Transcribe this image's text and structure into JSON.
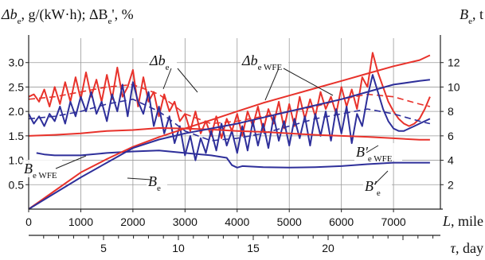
{
  "colors": {
    "red": "#e8322b",
    "blue": "#2e2f9a",
    "grid": "#9a9a9a",
    "axis": "#222222"
  },
  "chart_data": {
    "type": "line",
    "title": "",
    "ylabel_left": {
      "base": "Δb",
      "sub": "e",
      "rest": ", g/(kW·h); ΔB",
      "sub2": "e",
      "tail": "', %"
    },
    "ylabel_right": {
      "base": "B",
      "sub": "e",
      "tail": ", t"
    },
    "xlabel": {
      "var": "L",
      "tail": ", mile"
    },
    "x2label": {
      "var": "τ",
      "tail": ", day"
    },
    "xlim": [
      0,
      7900
    ],
    "ylim_left": [
      0,
      3.5
    ],
    "ylim_right": [
      0,
      14
    ],
    "x_ticks": [
      0,
      1000,
      2000,
      3000,
      4000,
      5000,
      6000,
      7000
    ],
    "y_left_ticks": [
      0.5,
      1.0,
      1.5,
      2.0,
      2.5,
      3.0
    ],
    "y_right_ticks": [
      2,
      4,
      6,
      8,
      10,
      12
    ],
    "x2_ticks": [
      5,
      10,
      15,
      20
    ],
    "x2_range_days": [
      0,
      27.5
    ],
    "grid": true,
    "series": [
      {
        "name": "Δb_e (red)",
        "color": "red",
        "axis": "left",
        "dash": false,
        "x": [
          0,
          100,
          200,
          300,
          400,
          500,
          600,
          700,
          800,
          900,
          1000,
          1100,
          1200,
          1300,
          1400,
          1500,
          1600,
          1700,
          1800,
          1900,
          2000,
          2100,
          2200,
          2300,
          2400,
          2500,
          2600,
          2700,
          2800,
          2900,
          3000,
          3100,
          3200,
          3300,
          3400,
          3500,
          3600,
          3700,
          3800,
          3900,
          4000,
          4100,
          4200,
          4300,
          4400,
          4500,
          4600,
          4700,
          4800,
          4900,
          5000,
          5100,
          5200,
          5300,
          5400,
          5500,
          5600,
          5700,
          5800,
          5900,
          6000,
          6100,
          6200,
          6300,
          6400,
          6500,
          6600,
          6700,
          6800,
          6900,
          7000,
          7100,
          7200,
          7300,
          7400,
          7500,
          7600,
          7700
        ],
        "y": [
          2.3,
          2.35,
          2.2,
          2.45,
          2.1,
          2.5,
          2.15,
          2.6,
          2.2,
          2.7,
          2.25,
          2.8,
          2.3,
          2.65,
          2.2,
          2.75,
          2.25,
          2.9,
          2.3,
          2.5,
          2.85,
          2.1,
          2.7,
          2.2,
          2.4,
          1.9,
          2.35,
          2.0,
          2.2,
          1.8,
          1.95,
          1.6,
          2.0,
          1.55,
          1.8,
          1.5,
          1.9,
          1.45,
          1.85,
          1.6,
          1.95,
          1.5,
          2.0,
          1.7,
          2.1,
          1.6,
          2.05,
          1.75,
          2.2,
          1.65,
          2.15,
          1.7,
          2.3,
          1.85,
          2.25,
          1.9,
          2.4,
          2.05,
          2.3,
          1.95,
          2.5,
          2.1,
          2.45,
          2.05,
          2.7,
          2.5,
          3.2,
          2.8,
          2.5,
          2.2,
          2.0,
          1.85,
          1.75,
          1.7,
          1.75,
          1.85,
          2.05,
          2.3
        ]
      },
      {
        "name": "Δb_e trend (red)",
        "color": "red",
        "axis": "left",
        "dash": true,
        "x": [
          0,
          500,
          1000,
          1500,
          2000,
          2500,
          3000,
          3500,
          4000,
          4500,
          5000,
          5500,
          6000,
          6500,
          7000,
          7500,
          7700
        ],
        "y": [
          2.25,
          2.3,
          2.4,
          2.5,
          2.55,
          2.35,
          1.95,
          1.75,
          1.8,
          1.9,
          2.0,
          2.1,
          2.25,
          2.35,
          2.3,
          2.15,
          2.1
        ]
      },
      {
        "name": "Δb_e WFE (blue)",
        "color": "blue",
        "axis": "left",
        "dash": false,
        "x": [
          0,
          100,
          200,
          300,
          400,
          500,
          600,
          700,
          800,
          900,
          1000,
          1100,
          1200,
          1300,
          1400,
          1500,
          1600,
          1700,
          1800,
          1900,
          2000,
          2100,
          2200,
          2300,
          2400,
          2500,
          2600,
          2700,
          2800,
          2900,
          3000,
          3100,
          3200,
          3300,
          3400,
          3500,
          3600,
          3700,
          3800,
          3900,
          4000,
          4100,
          4200,
          4300,
          4400,
          4500,
          4600,
          4700,
          4800,
          4900,
          5000,
          5100,
          5200,
          5300,
          5400,
          5500,
          5600,
          5700,
          5800,
          5900,
          6000,
          6100,
          6200,
          6300,
          6400,
          6500,
          6600,
          6700,
          6800,
          6900,
          7000,
          7100,
          7200,
          7300,
          7400,
          7500,
          7600,
          7700
        ],
        "y": [
          1.95,
          1.75,
          1.9,
          1.7,
          1.95,
          1.8,
          2.1,
          1.75,
          2.2,
          1.9,
          2.3,
          2.0,
          2.4,
          1.95,
          2.2,
          1.8,
          2.35,
          2.0,
          2.55,
          1.9,
          2.6,
          2.2,
          1.95,
          2.4,
          1.7,
          2.1,
          1.55,
          1.9,
          1.35,
          1.7,
          1.1,
          1.5,
          1.0,
          1.45,
          1.15,
          1.6,
          1.2,
          1.75,
          1.3,
          1.6,
          1.15,
          1.7,
          1.2,
          1.8,
          1.3,
          1.75,
          1.25,
          1.9,
          1.4,
          1.8,
          1.3,
          1.85,
          1.45,
          1.9,
          1.3,
          1.95,
          1.5,
          2.0,
          1.4,
          2.05,
          1.55,
          2.1,
          1.35,
          1.95,
          1.7,
          2.3,
          2.75,
          2.4,
          2.05,
          1.8,
          1.65,
          1.6,
          1.6,
          1.65,
          1.7,
          1.75,
          1.8,
          1.85
        ]
      },
      {
        "name": "Δb_e WFE trend (blue)",
        "color": "blue",
        "axis": "left",
        "dash": true,
        "x": [
          0,
          500,
          1000,
          1500,
          2000,
          2500,
          3000,
          3500,
          4000,
          4500,
          5000,
          5500,
          6000,
          6500,
          7000,
          7500,
          7700
        ],
        "y": [
          1.85,
          1.9,
          2.0,
          2.15,
          2.25,
          2.0,
          1.6,
          1.4,
          1.45,
          1.55,
          1.7,
          1.85,
          1.95,
          2.05,
          1.95,
          1.8,
          1.75
        ]
      },
      {
        "name": "ΔB'_e WFE (red)",
        "color": "red",
        "axis": "left",
        "dash": false,
        "x": [
          0,
          500,
          1000,
          1500,
          2000,
          2500,
          3000,
          3500,
          4000,
          4500,
          5000,
          5500,
          6000,
          6500,
          7000,
          7500,
          7700
        ],
        "y": [
          1.5,
          1.52,
          1.55,
          1.6,
          1.62,
          1.66,
          1.65,
          1.63,
          1.6,
          1.58,
          1.55,
          1.52,
          1.5,
          1.48,
          1.45,
          1.42,
          1.42
        ]
      },
      {
        "name": "ΔB'_e (blue)",
        "color": "blue",
        "axis": "left",
        "dash": false,
        "x": [
          150,
          300,
          500,
          1000,
          1500,
          2000,
          2500,
          3000,
          3500,
          3800,
          3900,
          4000,
          4100,
          4500,
          5000,
          5500,
          6000,
          6500,
          7000,
          7500,
          7700
        ],
        "y": [
          1.15,
          1.12,
          1.1,
          1.1,
          1.15,
          1.18,
          1.2,
          1.15,
          1.1,
          1.05,
          0.9,
          0.85,
          0.88,
          0.86,
          0.85,
          0.86,
          0.88,
          0.92,
          0.95,
          0.95,
          0.95
        ]
      },
      {
        "name": "B_e WFE (red)",
        "color": "red",
        "axis": "right",
        "dash": false,
        "x": [
          0,
          500,
          1000,
          1500,
          2000,
          2500,
          3000,
          3500,
          4000,
          4500,
          5000,
          5500,
          6000,
          6500,
          7000,
          7500,
          7700
        ],
        "y": [
          0,
          1.5,
          3.0,
          4.1,
          5.1,
          5.9,
          6.6,
          7.3,
          8.0,
          8.7,
          9.3,
          9.9,
          10.5,
          11.1,
          11.7,
          12.2,
          12.6
        ]
      },
      {
        "name": "B_e (blue)",
        "color": "blue",
        "axis": "right",
        "dash": false,
        "x": [
          0,
          500,
          1000,
          1500,
          2000,
          2500,
          3000,
          3500,
          4000,
          4500,
          5000,
          5500,
          6000,
          6500,
          7000,
          7500,
          7700
        ],
        "y": [
          0,
          1.3,
          2.6,
          3.8,
          5.0,
          5.7,
          6.2,
          6.6,
          7.0,
          7.5,
          8.0,
          8.5,
          9.0,
          9.6,
          10.2,
          10.5,
          10.6
        ]
      }
    ],
    "annotations": [
      {
        "key": "db_e",
        "base": "Δb",
        "sub": "e"
      },
      {
        "key": "db_e_wfe",
        "base": "Δb",
        "sub": "e WFE"
      },
      {
        "key": "B_wfe",
        "base": "B",
        "sub": "e WFE"
      },
      {
        "key": "B_e",
        "base": "B",
        "sub": "e"
      },
      {
        "key": "Bp_wfe",
        "base": "B'",
        "sub": "e WFE"
      },
      {
        "key": "Bp_e",
        "base": "B'",
        "sub": "e"
      }
    ]
  }
}
